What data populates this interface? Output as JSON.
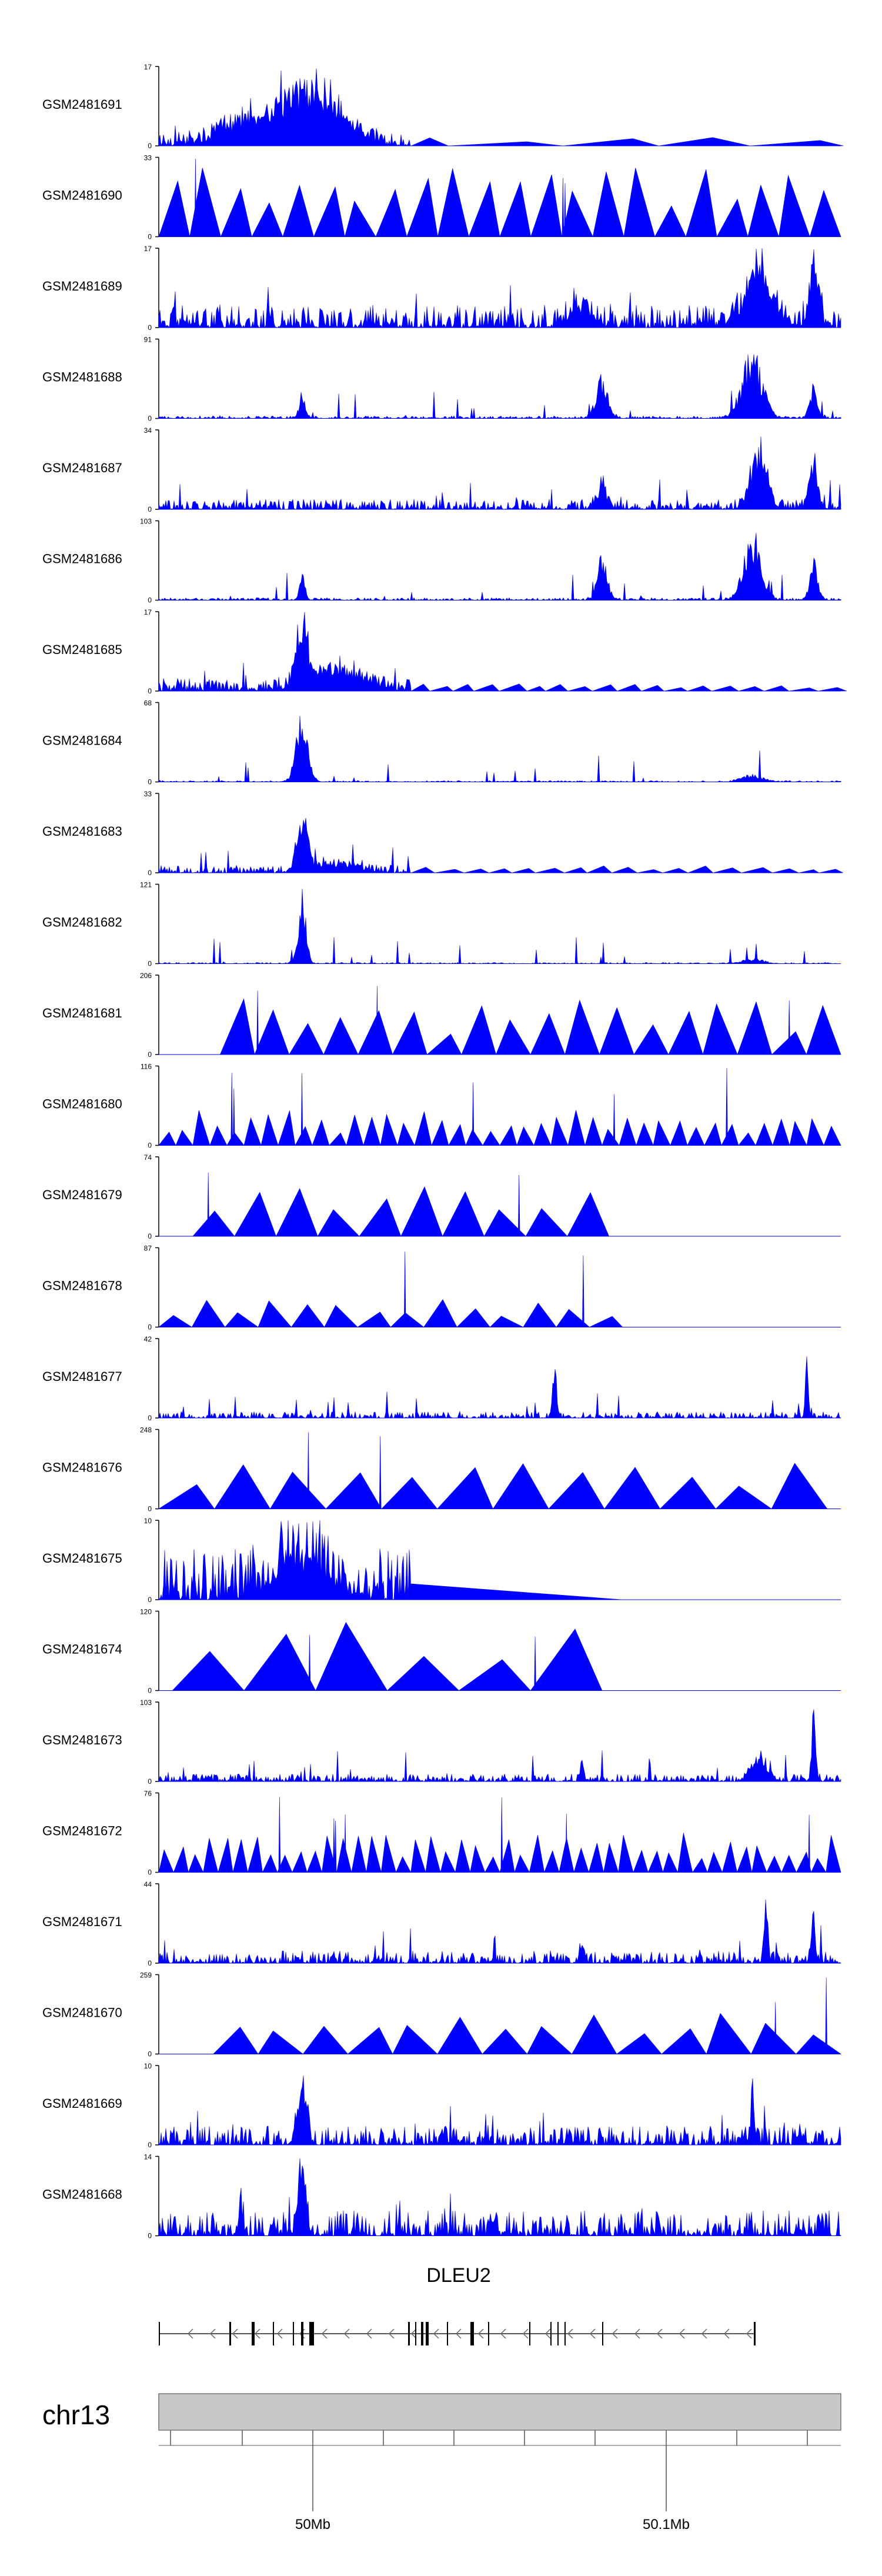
{
  "chart_data": {
    "type": "area",
    "title": "",
    "xlabel": "",
    "ylabel": "",
    "fill_color": "#0000ff",
    "axis_color": "#000000",
    "chromosome": "chr13",
    "gene": "DLEU2",
    "x_ticks": [
      "50Mb",
      "50.1Mb"
    ],
    "tracks": [
      {
        "name": "GSM2481691",
        "ymax": "17",
        "ymin": "0"
      },
      {
        "name": "GSM2481690",
        "ymax": "33",
        "ymin": "0"
      },
      {
        "name": "GSM2481689",
        "ymax": "17",
        "ymin": "0"
      },
      {
        "name": "GSM2481688",
        "ymax": "91",
        "ymin": "0"
      },
      {
        "name": "GSM2481687",
        "ymax": "34",
        "ymin": "0"
      },
      {
        "name": "GSM2481686",
        "ymax": "103",
        "ymin": "0"
      },
      {
        "name": "GSM2481685",
        "ymax": "17",
        "ymin": "0"
      },
      {
        "name": "GSM2481684",
        "ymax": "68",
        "ymin": "0"
      },
      {
        "name": "GSM2481683",
        "ymax": "33",
        "ymin": "0"
      },
      {
        "name": "GSM2481682",
        "ymax": "121",
        "ymin": "0"
      },
      {
        "name": "GSM2481681",
        "ymax": "206",
        "ymin": "0"
      },
      {
        "name": "GSM2481680",
        "ymax": "116",
        "ymin": "0"
      },
      {
        "name": "GSM2481679",
        "ymax": "74",
        "ymin": "0"
      },
      {
        "name": "GSM2481678",
        "ymax": "87",
        "ymin": "0"
      },
      {
        "name": "GSM2481677",
        "ymax": "42",
        "ymin": "0"
      },
      {
        "name": "GSM2481676",
        "ymax": "248",
        "ymin": "0"
      },
      {
        "name": "GSM2481675",
        "ymax": "10",
        "ymin": "0"
      },
      {
        "name": "GSM2481674",
        "ymax": "120",
        "ymin": "0"
      },
      {
        "name": "GSM2481673",
        "ymax": "103",
        "ymin": "0"
      },
      {
        "name": "GSM2481672",
        "ymax": "76",
        "ymin": "0"
      },
      {
        "name": "GSM2481671",
        "ymax": "44",
        "ymin": "0"
      },
      {
        "name": "GSM2481670",
        "ymax": "259",
        "ymin": "0"
      },
      {
        "name": "GSM2481669",
        "ymax": "10",
        "ymin": "0"
      },
      {
        "name": "GSM2481668",
        "ymax": "14",
        "ymin": "0"
      }
    ]
  }
}
